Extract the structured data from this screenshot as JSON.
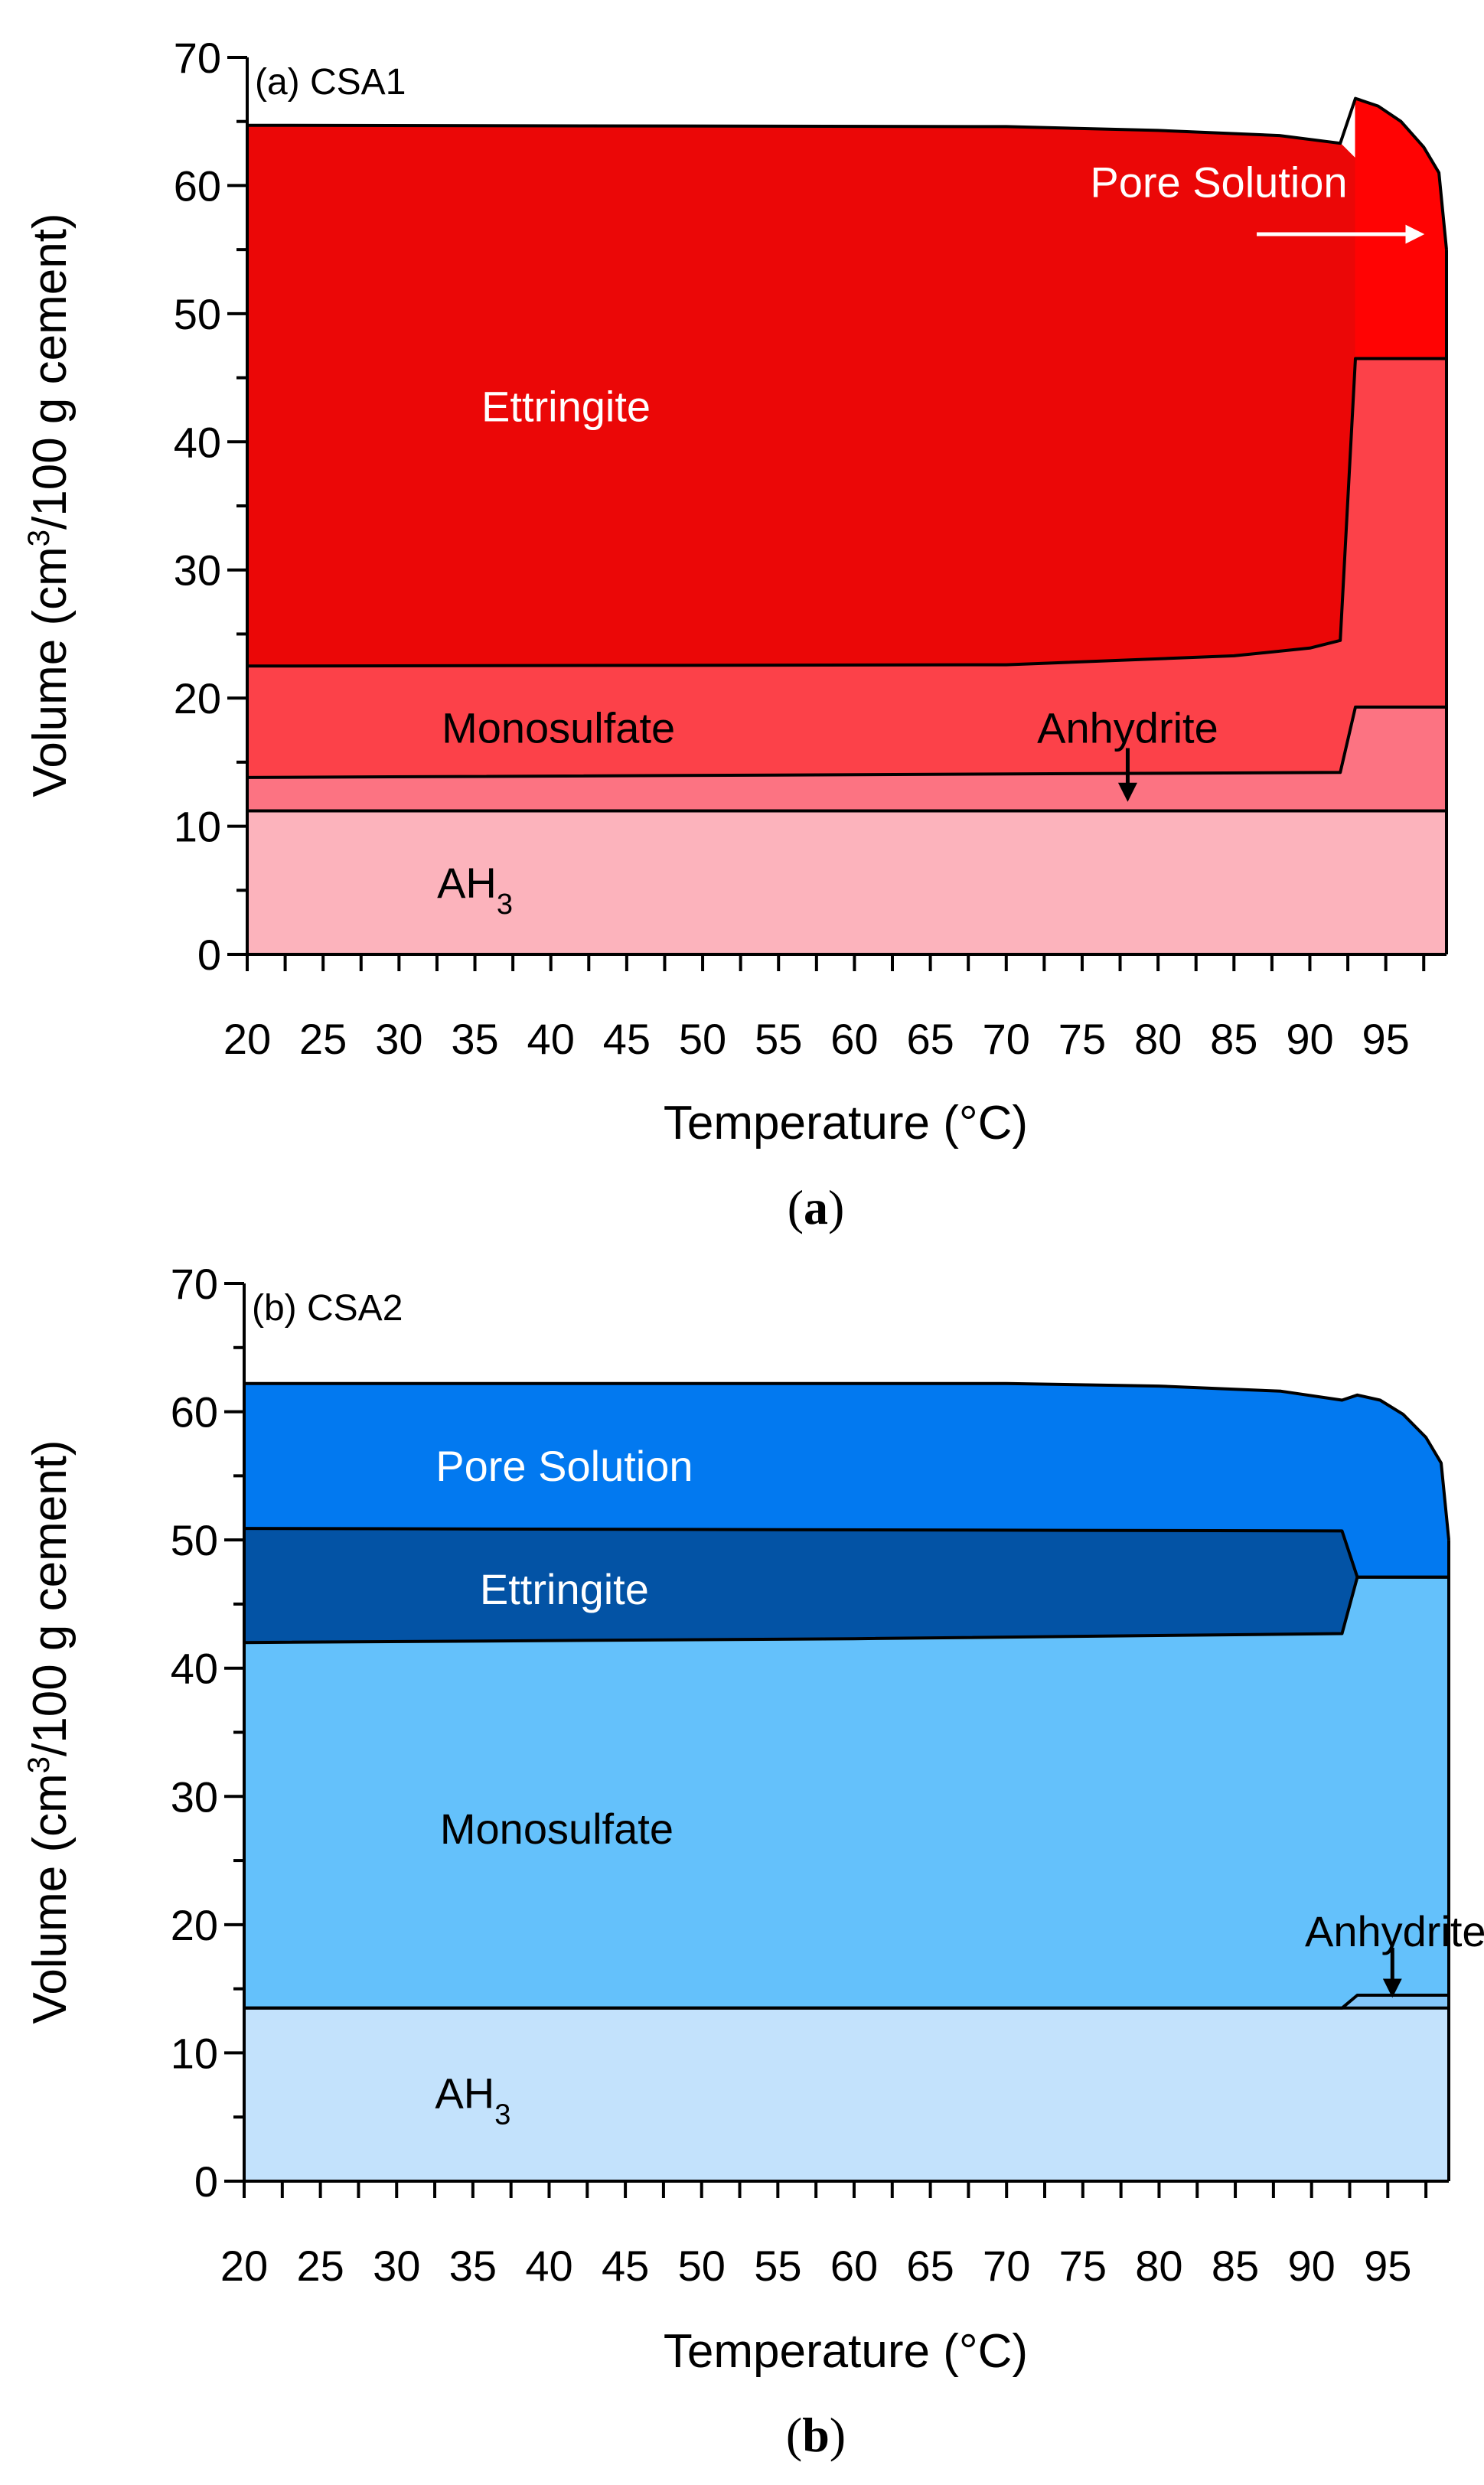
{
  "chart_data": [
    {
      "type": "area",
      "stacked": true,
      "panel_tag": "(a) CSA1",
      "caption": {
        "open": "(",
        "letter": "a",
        "close": ")"
      },
      "xlabel": "Temperature (°C)",
      "ylabel": {
        "before": "Volume (cm",
        "sup": "3",
        "after": "/100 g cement)"
      },
      "xlim": [
        20,
        99
      ],
      "ylim": [
        0,
        70
      ],
      "x_ticks": [
        20,
        25,
        30,
        35,
        40,
        45,
        50,
        55,
        60,
        65,
        70,
        75,
        80,
        85,
        90,
        95
      ],
      "x_minor_ticks": [
        20,
        22.5,
        25,
        27.5,
        30,
        32.5,
        35,
        37.5,
        40,
        42.5,
        45,
        47.5,
        50,
        52.5,
        55,
        57.5,
        60,
        62.5,
        65,
        67.5,
        70,
        72.5,
        75,
        77.5,
        80,
        82.5,
        85,
        87.5,
        90,
        92.5,
        95,
        97.5
      ],
      "y_ticks": [
        0,
        10,
        20,
        30,
        40,
        50,
        60,
        70
      ],
      "y_minor_ticks": [
        5,
        15,
        25,
        35,
        45,
        55,
        65
      ],
      "boundaries": [
        {
          "name": "AH3-top",
          "points": [
            [
              20,
              11.2
            ],
            [
              99,
              11.2
            ]
          ]
        },
        {
          "name": "anhydrite-top",
          "points": [
            [
              20,
              13.8
            ],
            [
              92,
              14.2
            ],
            [
              93,
              19.3
            ],
            [
              99,
              19.3
            ]
          ]
        },
        {
          "name": "monosulfate-top",
          "points": [
            [
              20,
              22.5
            ],
            [
              70,
              22.6
            ],
            [
              85,
              23.3
            ],
            [
              90,
              23.9
            ],
            [
              92,
              24.5
            ],
            [
              93,
              46.5
            ],
            [
              99,
              46.5
            ]
          ]
        },
        {
          "name": "ettringite-top",
          "points": [
            [
              20,
              64.7
            ],
            [
              70,
              64.6
            ],
            [
              80,
              64.3
            ],
            [
              88,
              63.9
            ],
            [
              92,
              63.3
            ],
            [
              93,
              66.8
            ],
            [
              94.5,
              66.2
            ],
            [
              96,
              65.0
            ],
            [
              97.5,
              63.0
            ],
            [
              98.5,
              61.0
            ],
            [
              99,
              55.0
            ]
          ]
        }
      ],
      "series": [
        {
          "name": "AH3",
          "label_main": "AH",
          "label_sub": "3",
          "color": "#fcb3bc",
          "text_color": "#000000",
          "lower": null,
          "upper": "AH3-top",
          "label_at": [
            35,
            5.6
          ]
        },
        {
          "name": "Anhydrite",
          "color": "#fc7382",
          "lower": "AH3-top",
          "upper": "anhydrite-top"
        },
        {
          "name": "Monosulfate",
          "color": "#fc4149",
          "text_color": "#000000",
          "lower": "anhydrite-top",
          "upper": "monosulfate-top",
          "label_at": [
            40.5,
            17.7
          ]
        },
        {
          "name": "Ettringite",
          "color": "#eb0707",
          "text_color": "#ffffff",
          "lower": "monosulfate-top",
          "upper": "ettringite-top",
          "upper_x_max": 92,
          "label_at": [
            41,
            42.8
          ]
        },
        {
          "name": "Pore Solution",
          "color": "#ff0303",
          "text_color": "#ffffff",
          "lower": "monosulfate-top",
          "upper": "ettringite-top",
          "x_min": 93
        }
      ],
      "annotations": [
        {
          "text": "Pore Solution",
          "text_at": [
            84,
            60.3
          ],
          "text_color": "#ffffff",
          "arrow_from": [
            86.5,
            56.2
          ],
          "arrow_to": [
            97.3,
            56.2
          ],
          "arrow_color": "#ffffff"
        },
        {
          "text": "Anhydrite",
          "text_at": [
            78,
            17.7
          ],
          "text_color": "#000000",
          "arrow_from": [
            78,
            16.1
          ],
          "arrow_to": [
            78,
            12.2
          ],
          "arrow_color": "#000000"
        }
      ]
    },
    {
      "type": "area",
      "stacked": true,
      "panel_tag": "(b) CSA2",
      "caption": {
        "open": "(",
        "letter": "b",
        "close": ")"
      },
      "xlabel": "Temperature (°C)",
      "ylabel": {
        "before": "Volume (cm",
        "sup": "3",
        "after": "/100 g cement)"
      },
      "xlim": [
        20,
        99
      ],
      "ylim": [
        0,
        70
      ],
      "x_ticks": [
        20,
        25,
        30,
        35,
        40,
        45,
        50,
        55,
        60,
        65,
        70,
        75,
        80,
        85,
        90,
        95
      ],
      "x_minor_ticks": [
        20,
        22.5,
        25,
        27.5,
        30,
        32.5,
        35,
        37.5,
        40,
        42.5,
        45,
        47.5,
        50,
        52.5,
        55,
        57.5,
        60,
        62.5,
        65,
        67.5,
        70,
        72.5,
        75,
        77.5,
        80,
        82.5,
        85,
        87.5,
        90,
        92.5,
        95,
        97.5
      ],
      "y_ticks": [
        0,
        10,
        20,
        30,
        40,
        50,
        60,
        70
      ],
      "y_minor_ticks": [
        5,
        15,
        25,
        35,
        45,
        55,
        65
      ],
      "boundaries": [
        {
          "name": "AH3-top",
          "points": [
            [
              20,
              13.5
            ],
            [
              99,
              13.5
            ]
          ]
        },
        {
          "name": "anhydrite-top",
          "points": [
            [
              20,
              13.5
            ],
            [
              92,
              13.5
            ],
            [
              93,
              14.5
            ],
            [
              99,
              14.5
            ]
          ]
        },
        {
          "name": "monosulfate-top",
          "points": [
            [
              20,
              42.0
            ],
            [
              60,
              42.3
            ],
            [
              92,
              42.7
            ],
            [
              93,
              47.1
            ],
            [
              99,
              47.1
            ]
          ]
        },
        {
          "name": "ettringite-top",
          "points": [
            [
              20,
              50.9
            ],
            [
              92,
              50.7
            ],
            [
              93,
              47.1
            ],
            [
              99,
              47.1
            ]
          ]
        },
        {
          "name": "pore-top",
          "points": [
            [
              20,
              62.2
            ],
            [
              70,
              62.2
            ],
            [
              80,
              62.0
            ],
            [
              88,
              61.6
            ],
            [
              92,
              60.9
            ],
            [
              93,
              61.3
            ],
            [
              94.5,
              60.9
            ],
            [
              96,
              59.8
            ],
            [
              97.5,
              58.0
            ],
            [
              98.5,
              56.0
            ],
            [
              99,
              50.0
            ]
          ]
        }
      ],
      "series": [
        {
          "name": "AH3",
          "label_main": "AH",
          "label_sub": "3",
          "color": "#c3e2fc",
          "text_color": "#000000",
          "lower": null,
          "upper": "AH3-top",
          "label_at": [
            35,
            6.9
          ]
        },
        {
          "name": "Anhydrite",
          "color": "#85c6f8",
          "lower": "AH3-top",
          "upper": "anhydrite-top"
        },
        {
          "name": "Monosulfate",
          "color": "#64c1fb",
          "text_color": "#000000",
          "lower": "anhydrite-top",
          "upper": "monosulfate-top",
          "label_at": [
            40.5,
            27.5
          ]
        },
        {
          "name": "Ettringite",
          "color": "#0353a5",
          "text_color": "#ffffff",
          "lower": "monosulfate-top",
          "upper": "ettringite-top",
          "label_at": [
            41,
            46.2
          ]
        },
        {
          "name": "Pore Solution",
          "color": "#0279f0",
          "text_color": "#ffffff",
          "lower": "ettringite-top",
          "upper": "pore-top",
          "label_at": [
            41,
            55.8
          ]
        }
      ],
      "annotations": [
        {
          "text": "Anhydrite",
          "text_at": [
            95.5,
            19.5
          ],
          "text_color": "#000000",
          "arrow_from": [
            95.3,
            18.2
          ],
          "arrow_to": [
            95.3,
            14.6
          ],
          "arrow_color": "#000000"
        }
      ]
    }
  ]
}
